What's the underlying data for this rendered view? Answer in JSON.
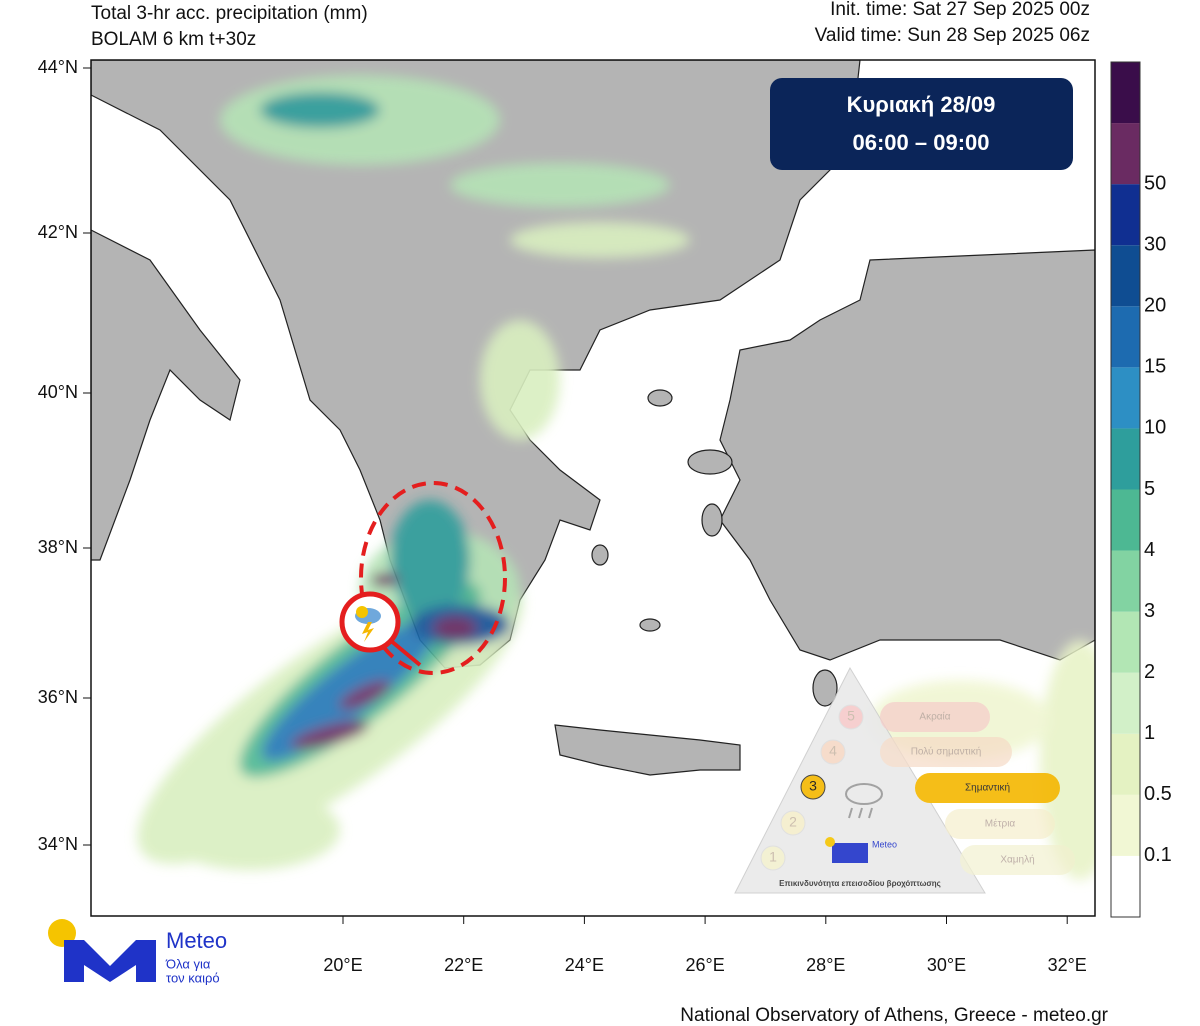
{
  "header": {
    "title": "Total 3-hr acc. precipitation (mm)",
    "model": "BOLAM 6 km t+30z",
    "init_time": "Init. time: Sat 27 Sep 2025 00z",
    "valid_time": "Valid time: Sun 28 Sep 2025 06z"
  },
  "map": {
    "lat_labels": [
      "44°N",
      "42°N",
      "40°N",
      "38°N",
      "36°N",
      "34°N"
    ],
    "lon_labels": [
      "20°E",
      "22°E",
      "24°E",
      "26°E",
      "28°E",
      "30°E",
      "32°E"
    ]
  },
  "colorbar": {
    "labels": [
      "0.1",
      "0.5",
      "1",
      "2",
      "3",
      "4",
      "5",
      "10",
      "15",
      "20",
      "30",
      "50"
    ],
    "colors": [
      "#ffffff",
      "#f1f7d4",
      "#e4f2c2",
      "#d2f0c8",
      "#b2e6b4",
      "#82d3a2",
      "#4db893",
      "#2e9e9c",
      "#2d8fc4",
      "#1d6bb0",
      "#0f4d92",
      "#102f91",
      "#6a2b62",
      "#3a0d4a"
    ]
  },
  "banner": {
    "day": "Κυριακή 28/09",
    "period": "06:00 – 09:00"
  },
  "risk_scale": {
    "levels": [
      {
        "number": "1",
        "label": "Χαμηλή"
      },
      {
        "number": "2",
        "label": "Μέτρια"
      },
      {
        "number": "3",
        "label": "Σημαντική"
      },
      {
        "number": "4",
        "label": "Πολύ σημαντική"
      },
      {
        "number": "5",
        "label": "Ακραία"
      }
    ],
    "caption": "Επικινδυνότητα επεισοδίου βροχόπτωσης"
  },
  "logo": {
    "name": "Meteo",
    "tagline_1": "Όλα για",
    "tagline_2": "τον καιρό"
  },
  "footer": "National Observatory of Athens, Greece - meteo.gr"
}
